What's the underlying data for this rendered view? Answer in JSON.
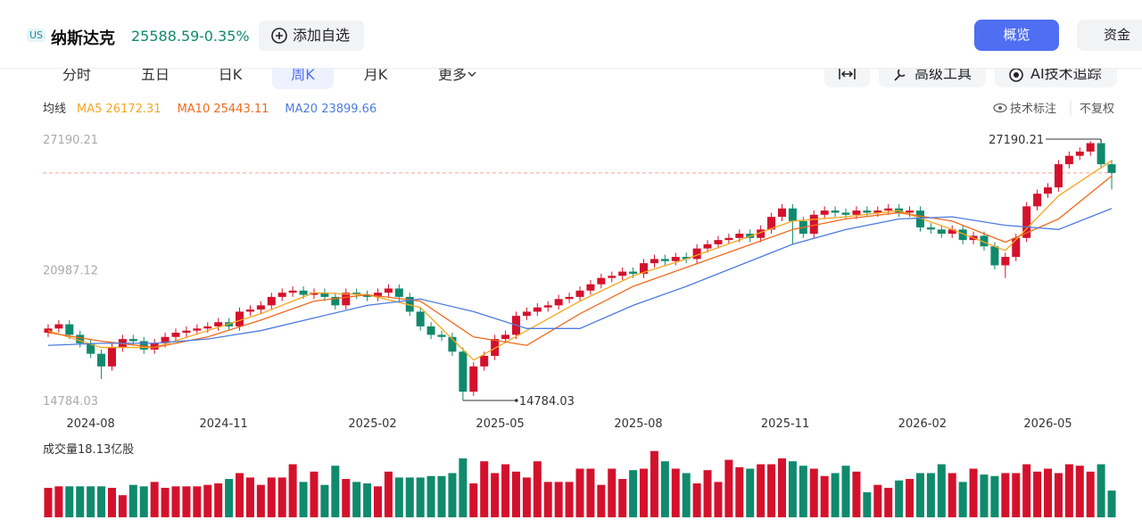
{
  "header": {
    "badge": "US",
    "name": "纳斯达克",
    "price": 25588.59,
    "change": "-0.35%",
    "add_watch": "添加自选",
    "right_buttons": [
      "概览",
      "资金"
    ]
  },
  "period_tabs": [
    "分时",
    "五日",
    "日K",
    "周K",
    "月K",
    "更多"
  ],
  "active_tab": 3,
  "tools": [
    "高级工具",
    "AI技术追踪"
  ],
  "chart_data": {
    "type": "candlestick",
    "legend_label": "均线",
    "options": [
      "技术标注",
      "不复权"
    ],
    "up_color": "#d4112c",
    "down_color": "#0f8a6c",
    "xlim": [
      -0.5,
      100.5
    ],
    "ylim": [
      14318,
      27868
    ],
    "yticks": [
      27190.21,
      20987.12,
      14784.03
    ],
    "xticks": [
      {
        "value": 4,
        "label": "2024-08"
      },
      {
        "value": 16.5,
        "label": "2024-11"
      },
      {
        "value": 30.5,
        "label": "2025-02"
      },
      {
        "value": 42.5,
        "label": "2025-05"
      },
      {
        "value": 55.5,
        "label": "2025-08"
      },
      {
        "value": 69.3,
        "label": "2025-11"
      },
      {
        "value": 82.2,
        "label": "2026-02"
      },
      {
        "value": 94,
        "label": "2026-05"
      }
    ],
    "high_index": 99,
    "low_index": 39,
    "ohlc": [
      [
        18000,
        18400,
        17800,
        18200
      ],
      [
        18200,
        18600,
        18000,
        18400
      ],
      [
        18400,
        18600,
        17700,
        17900
      ],
      [
        17900,
        18100,
        17300,
        17500
      ],
      [
        17500,
        17700,
        16800,
        17000
      ],
      [
        17000,
        17200,
        15800,
        16400
      ],
      [
        16400,
        17500,
        16200,
        17300
      ],
      [
        17300,
        17900,
        17100,
        17700
      ],
      [
        17700,
        17900,
        17400,
        17600
      ],
      [
        17600,
        17800,
        17000,
        17200
      ],
      [
        17200,
        17700,
        17000,
        17500
      ],
      [
        17500,
        18000,
        17300,
        17800
      ],
      [
        17800,
        18200,
        17600,
        18000
      ],
      [
        18000,
        18300,
        17800,
        18100
      ],
      [
        18100,
        18400,
        17900,
        18200
      ],
      [
        18200,
        18500,
        18000,
        18300
      ],
      [
        18300,
        18700,
        18100,
        18500
      ],
      [
        18500,
        18700,
        18100,
        18300
      ],
      [
        18300,
        19200,
        18100,
        19000
      ],
      [
        19000,
        19300,
        18800,
        19100
      ],
      [
        19100,
        19500,
        18900,
        19300
      ],
      [
        19300,
        19900,
        19100,
        19700
      ],
      [
        19700,
        20100,
        19500,
        19900
      ],
      [
        19900,
        20200,
        19700,
        20000
      ],
      [
        20000,
        20200,
        19600,
        19800
      ],
      [
        19800,
        20100,
        19600,
        19900
      ],
      [
        19900,
        20100,
        19500,
        19700
      ],
      [
        19700,
        19900,
        19100,
        19300
      ],
      [
        19300,
        20100,
        19100,
        19900
      ],
      [
        19900,
        20100,
        19600,
        19800
      ],
      [
        19800,
        20000,
        19500,
        19700
      ],
      [
        19700,
        20100,
        19500,
        19900
      ],
      [
        19900,
        20300,
        19700,
        20100
      ],
      [
        20100,
        20300,
        19500,
        19700
      ],
      [
        19700,
        19900,
        18800,
        19000
      ],
      [
        19000,
        19200,
        18100,
        18300
      ],
      [
        18300,
        18500,
        17700,
        17900
      ],
      [
        17900,
        18100,
        17600,
        17800
      ],
      [
        17800,
        18000,
        16900,
        17100
      ],
      [
        17100,
        17300,
        14784.03,
        15200
      ],
      [
        15200,
        16600,
        15000,
        16400
      ],
      [
        16400,
        17100,
        16200,
        16900
      ],
      [
        16900,
        17900,
        16700,
        17700
      ],
      [
        17700,
        18100,
        17500,
        17900
      ],
      [
        17900,
        19000,
        17700,
        18800
      ],
      [
        18800,
        19200,
        18600,
        19000
      ],
      [
        19000,
        19400,
        18800,
        19200
      ],
      [
        19200,
        19500,
        19000,
        19300
      ],
      [
        19300,
        19800,
        19100,
        19600
      ],
      [
        19600,
        19900,
        19400,
        19700
      ],
      [
        19700,
        20200,
        19500,
        20000
      ],
      [
        20000,
        20500,
        19800,
        20300
      ],
      [
        20300,
        20800,
        20100,
        20600
      ],
      [
        20600,
        20900,
        20400,
        20700
      ],
      [
        20700,
        21100,
        20500,
        20900
      ],
      [
        20900,
        21100,
        20600,
        20800
      ],
      [
        20800,
        21500,
        20600,
        21300
      ],
      [
        21300,
        21700,
        21100,
        21500
      ],
      [
        21500,
        21700,
        21200,
        21400
      ],
      [
        21400,
        21800,
        21200,
        21600
      ],
      [
        21600,
        21800,
        21300,
        21500
      ],
      [
        21500,
        22200,
        21300,
        22000
      ],
      [
        22000,
        22400,
        21800,
        22200
      ],
      [
        22200,
        22600,
        22000,
        22400
      ],
      [
        22400,
        22700,
        22200,
        22500
      ],
      [
        22500,
        22900,
        22300,
        22700
      ],
      [
        22700,
        22900,
        22300,
        22500
      ],
      [
        22500,
        23100,
        22300,
        22900
      ],
      [
        22900,
        23700,
        22700,
        23500
      ],
      [
        23500,
        24100,
        23300,
        23900
      ],
      [
        23900,
        24100,
        22200,
        23300
      ],
      [
        23300,
        23500,
        22500,
        22700
      ],
      [
        22700,
        23800,
        22500,
        23600
      ],
      [
        23600,
        24000,
        23400,
        23800
      ],
      [
        23800,
        24000,
        23500,
        23700
      ],
      [
        23700,
        23900,
        23400,
        23600
      ],
      [
        23600,
        24000,
        23400,
        23800
      ],
      [
        23800,
        24000,
        23500,
        23700
      ],
      [
        23700,
        24000,
        23500,
        23800
      ],
      [
        23800,
        24100,
        23600,
        23900
      ],
      [
        23900,
        24100,
        23500,
        23700
      ],
      [
        23700,
        24000,
        23500,
        23800
      ],
      [
        23800,
        24000,
        22800,
        23000
      ],
      [
        23000,
        23200,
        22700,
        22900
      ],
      [
        22900,
        23100,
        22500,
        22700
      ],
      [
        22700,
        23100,
        22500,
        22900
      ],
      [
        22900,
        23100,
        22200,
        22400
      ],
      [
        22400,
        22800,
        22200,
        22600
      ],
      [
        22600,
        22800,
        21900,
        22100
      ],
      [
        22100,
        22300,
        21000,
        21200
      ],
      [
        21200,
        21800,
        20600,
        21600
      ],
      [
        21600,
        22700,
        21400,
        22500
      ],
      [
        22500,
        24200,
        22300,
        24000
      ],
      [
        24000,
        24800,
        23800,
        24600
      ],
      [
        24600,
        25100,
        24400,
        24900
      ],
      [
        24900,
        26200,
        24700,
        26000
      ],
      [
        26000,
        26600,
        25800,
        26400
      ],
      [
        26400,
        26800,
        26200,
        26600
      ],
      [
        26600,
        27100,
        26400,
        27000
      ],
      [
        27000,
        27190.21,
        25800,
        26000
      ],
      [
        26000,
        26200,
        24800,
        25588.59
      ]
    ],
    "ma": [
      {
        "name": "MA5",
        "color": "#f5a623",
        "x": [
          0,
          5,
          10,
          15,
          20,
          25,
          30,
          35,
          40,
          45,
          50,
          55,
          60,
          65,
          70,
          75,
          80,
          85,
          90,
          95,
          100
        ],
        "values": [
          18100,
          17300,
          17300,
          18100,
          18900,
          19900,
          19800,
          19200,
          16700,
          18100,
          19500,
          20700,
          21500,
          22400,
          23300,
          23500,
          23800,
          22900,
          21900,
          24500,
          26172.31
        ]
      },
      {
        "name": "MA10",
        "color": "#f06a1d",
        "x": [
          0,
          5,
          10,
          15,
          20,
          25,
          30,
          35,
          40,
          45,
          50,
          55,
          60,
          65,
          70,
          75,
          80,
          85,
          90,
          95,
          100
        ],
        "values": [
          18000,
          17600,
          17300,
          17800,
          18600,
          19500,
          19800,
          19500,
          17800,
          17400,
          18900,
          20200,
          21100,
          22000,
          22900,
          23400,
          23700,
          23300,
          22300,
          23400,
          25443.11
        ]
      },
      {
        "name": "MA20",
        "color": "#4d7be0",
        "x": [
          0,
          5,
          10,
          15,
          20,
          25,
          30,
          35,
          40,
          45,
          50,
          55,
          60,
          65,
          70,
          75,
          80,
          85,
          90,
          95,
          100
        ],
        "values": [
          17400,
          17500,
          17500,
          17700,
          18100,
          18700,
          19300,
          19600,
          19000,
          18200,
          18200,
          19300,
          20200,
          21200,
          22200,
          22900,
          23400,
          23500,
          23100,
          22900,
          23899.66
        ]
      }
    ],
    "volume": {
      "label": "成交量",
      "unit": "亿股",
      "ylim": [
        0,
        46
      ],
      "values": [
        20,
        21,
        21,
        21,
        21,
        21,
        20,
        15,
        22,
        21,
        24,
        20,
        21,
        21,
        21,
        22,
        23,
        26,
        30,
        27,
        22,
        27,
        27,
        36,
        24,
        31,
        22,
        35,
        26,
        24,
        23,
        21,
        31,
        27,
        27,
        27,
        28,
        28,
        30,
        40,
        23,
        38,
        30,
        36,
        31,
        27,
        38,
        24,
        24,
        24,
        33,
        33,
        22,
        33,
        26,
        32,
        33,
        45,
        38,
        33,
        30,
        23,
        32,
        24,
        39,
        34,
        33,
        36,
        36,
        40,
        38,
        35,
        33,
        28,
        30,
        35,
        31,
        17,
        22,
        20,
        25,
        26,
        30,
        30,
        36,
        30,
        24,
        33,
        29,
        28,
        30,
        30,
        36,
        31,
        33,
        30,
        36,
        35,
        31,
        36,
        18.13
      ]
    }
  }
}
